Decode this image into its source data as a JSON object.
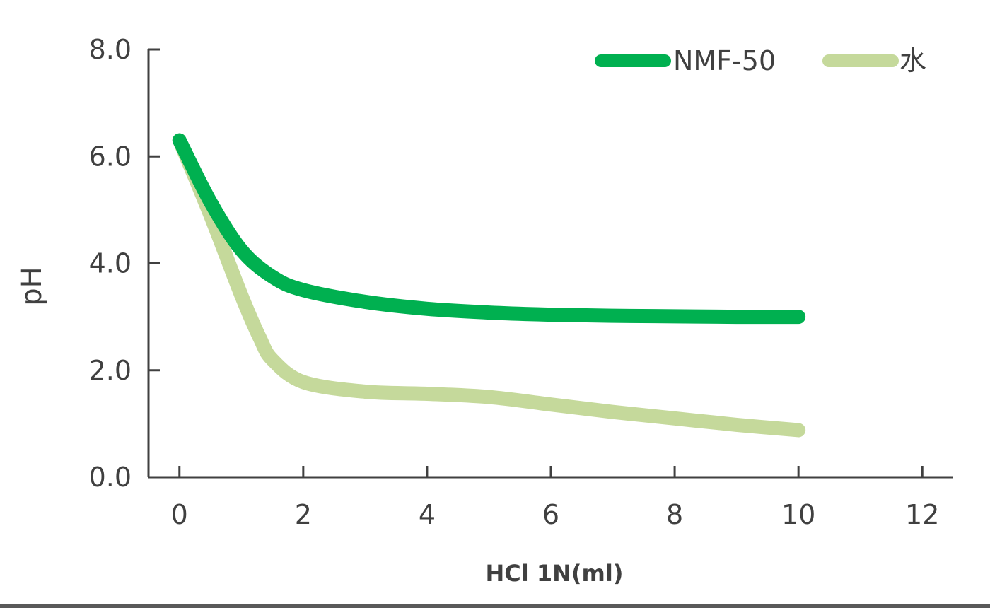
{
  "chart_data": {
    "type": "line",
    "xlabel": "HCl 1N(ml)",
    "ylabel": "pH",
    "xlim": [
      -0.5,
      12.5
    ],
    "ylim": [
      0,
      8
    ],
    "x_ticks": [
      "0",
      "2",
      "4",
      "6",
      "8",
      "10",
      "12"
    ],
    "y_ticks": [
      "0.0",
      "2.0",
      "4.0",
      "6.0",
      "8.0"
    ],
    "x_tick_values": [
      0,
      2,
      4,
      6,
      8,
      10,
      12
    ],
    "y_tick_values": [
      0,
      2,
      4,
      6,
      8
    ],
    "grid": false,
    "legend_position": "top-right",
    "series": [
      {
        "name": "NMF-50",
        "color": "#00b050",
        "points": [
          [
            0,
            6.3
          ],
          [
            0.5,
            5.15
          ],
          [
            1,
            4.25
          ],
          [
            1.5,
            3.75
          ],
          [
            2,
            3.5
          ],
          [
            3,
            3.28
          ],
          [
            4,
            3.15
          ],
          [
            5,
            3.08
          ],
          [
            6,
            3.04
          ],
          [
            7,
            3.02
          ],
          [
            8,
            3.01
          ],
          [
            9,
            3.0
          ],
          [
            10,
            3.0
          ]
        ]
      },
      {
        "name": "水",
        "color": "#c5d99b",
        "points": [
          [
            0,
            6.3
          ],
          [
            0.5,
            4.9
          ],
          [
            1,
            3.4
          ],
          [
            1.3,
            2.6
          ],
          [
            1.5,
            2.2
          ],
          [
            2,
            1.78
          ],
          [
            3,
            1.6
          ],
          [
            4,
            1.56
          ],
          [
            5,
            1.5
          ],
          [
            6,
            1.36
          ],
          [
            7,
            1.22
          ],
          [
            8,
            1.1
          ],
          [
            9,
            0.98
          ],
          [
            10,
            0.88
          ]
        ]
      }
    ]
  }
}
